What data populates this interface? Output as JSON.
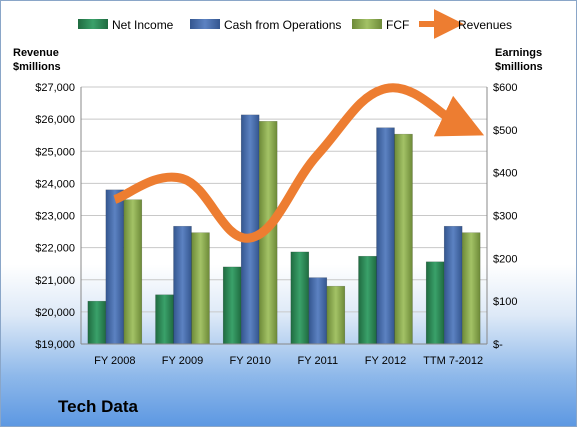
{
  "chart_data": {
    "type": "bar",
    "categories": [
      "FY 2008",
      "FY 2009",
      "FY 2010",
      "FY 2011",
      "FY 2012",
      "TTM 7-2012"
    ],
    "series": [
      {
        "name": "Net Income",
        "type": "bar",
        "axis": "right",
        "color": "#2e8b57",
        "values": [
          100,
          115,
          180,
          215,
          205,
          192
        ]
      },
      {
        "name": "Cash from Operations",
        "type": "bar",
        "axis": "right",
        "color": "#4a6fad",
        "values": [
          360,
          275,
          535,
          155,
          505,
          275
        ]
      },
      {
        "name": "FCF",
        "type": "bar",
        "axis": "right",
        "color": "#8fae52",
        "values": [
          337,
          260,
          520,
          135,
          490,
          260
        ]
      },
      {
        "name": "Revenues",
        "type": "line",
        "axis": "left",
        "color": "#ed7d31",
        "values": [
          23500,
          24150,
          22300,
          24900,
          26950,
          25950
        ]
      }
    ],
    "left_axis": {
      "title_line1": "Revenue",
      "title_line2": "$millions",
      "min": 19000,
      "max": 27000,
      "step": 1000,
      "tick_labels": [
        "$19,000",
        "$20,000",
        "$21,000",
        "$22,000",
        "$23,000",
        "$24,000",
        "$25,000",
        "$26,000",
        "$27,000"
      ]
    },
    "right_axis": {
      "title_line1": "Earnings",
      "title_line2": "$millions",
      "min": 0,
      "max": 600,
      "step": 100,
      "tick_labels": [
        "$-",
        "$100",
        "$200",
        "$300",
        "$400",
        "$500",
        "$600"
      ]
    },
    "grid": true,
    "legend_position": "top"
  },
  "company": "Tech Data"
}
